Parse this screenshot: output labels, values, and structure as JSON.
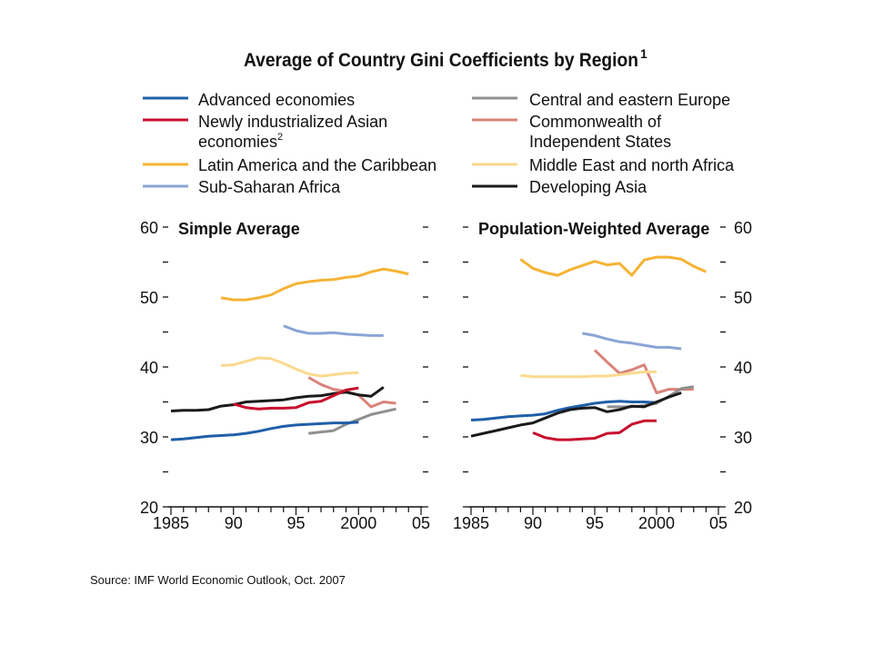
{
  "source": "Source: IMF World Economic Outlook, Oct. 2007",
  "chart_data": {
    "type": "line",
    "title": "Average of Country Gini Coefficients by Region",
    "title_superscript": "1",
    "ylim": [
      20,
      60
    ],
    "xlim": [
      1985,
      2005
    ],
    "y_ticks": [
      "20",
      "30",
      "40",
      "50",
      "60"
    ],
    "x_ticks": [
      "1985",
      "90",
      "95",
      "2000",
      "05"
    ],
    "legend": [
      {
        "key": "adv",
        "lines": [
          "Advanced economies"
        ],
        "color": "#1f5fa8"
      },
      {
        "key": "nie",
        "lines": [
          "Newly industrialized Asian",
          "economies"
        ],
        "sup": "2",
        "color": "#c8102e"
      },
      {
        "key": "lac",
        "lines": [
          "Latin America and the Caribbean"
        ],
        "color": "#f5b335"
      },
      {
        "key": "ssa",
        "lines": [
          "Sub-Saharan Africa"
        ],
        "color": "#8aa4d6"
      },
      {
        "key": "cee",
        "lines": [
          "Central and eastern Europe"
        ],
        "color": "#8f8f8f"
      },
      {
        "key": "cis",
        "lines": [
          "Commonwealth of",
          "Independent States"
        ],
        "color": "#d9837a"
      },
      {
        "key": "mena",
        "lines": [
          "Middle East and north Africa"
        ],
        "color": "#fbd98f"
      },
      {
        "key": "dasia",
        "lines": [
          "Developing Asia"
        ],
        "color": "#1a1a1a"
      }
    ],
    "panels": [
      {
        "title": "Simple Average",
        "series": [
          {
            "key": "lac",
            "x": [
              1989,
              1990,
              1991,
              1992,
              1993,
              1994,
              1995,
              1996,
              1997,
              1998,
              1999,
              2000,
              2001,
              2002,
              2003,
              2004
            ],
            "y": [
              49.9,
              49.6,
              49.6,
              49.9,
              50.3,
              51.2,
              51.9,
              52.2,
              52.4,
              52.5,
              52.8,
              53.0,
              53.6,
              54.0,
              53.7,
              53.3
            ]
          },
          {
            "key": "ssa",
            "x": [
              1994,
              1995,
              1996,
              1997,
              1998,
              1999,
              2000,
              2001,
              2002
            ],
            "y": [
              45.9,
              45.2,
              44.8,
              44.8,
              44.9,
              44.7,
              44.6,
              44.5,
              44.5
            ]
          },
          {
            "key": "mena",
            "x": [
              1989,
              1990,
              1991,
              1992,
              1993,
              1994,
              1995,
              1996,
              1997,
              1998,
              1999,
              2000
            ],
            "y": [
              40.2,
              40.3,
              40.8,
              41.3,
              41.2,
              40.5,
              39.7,
              39.0,
              38.7,
              38.9,
              39.1,
              39.2
            ]
          },
          {
            "key": "cis",
            "x": [
              1996,
              1997,
              1998,
              1999,
              2000,
              2001,
              2002,
              2003
            ],
            "y": [
              38.5,
              37.5,
              36.8,
              36.5,
              36.0,
              34.3,
              35.0,
              34.8
            ]
          },
          {
            "key": "dasia",
            "x": [
              1985,
              1986,
              1987,
              1988,
              1989,
              1990,
              1991,
              1992,
              1993,
              1994,
              1995,
              1996,
              1997,
              1998,
              1999,
              2000,
              2001,
              2002
            ],
            "y": [
              33.7,
              33.8,
              33.8,
              33.9,
              34.4,
              34.6,
              35.0,
              35.1,
              35.2,
              35.3,
              35.6,
              35.8,
              35.9,
              36.2,
              36.4,
              36.0,
              35.8,
              37.1
            ]
          },
          {
            "key": "nie",
            "x": [
              1990,
              1991,
              1992,
              1993,
              1994,
              1995,
              1996,
              1997,
              1998,
              1999,
              2000
            ],
            "y": [
              34.7,
              34.2,
              34.0,
              34.1,
              34.1,
              34.2,
              34.9,
              35.1,
              35.9,
              36.7,
              37.0
            ]
          },
          {
            "key": "cee",
            "x": [
              1996,
              1997,
              1998,
              1999,
              2000,
              2001,
              2002,
              2003
            ],
            "y": [
              30.5,
              30.7,
              30.9,
              31.8,
              32.5,
              33.2,
              33.6,
              34.0
            ]
          },
          {
            "key": "adv",
            "x": [
              1985,
              1986,
              1987,
              1988,
              1989,
              1990,
              1991,
              1992,
              1993,
              1994,
              1995,
              1996,
              1997,
              1998,
              1999,
              2000
            ],
            "y": [
              29.6,
              29.7,
              29.9,
              30.1,
              30.2,
              30.3,
              30.5,
              30.8,
              31.2,
              31.5,
              31.7,
              31.8,
              31.9,
              32.0,
              32.0,
              32.1
            ]
          }
        ]
      },
      {
        "title": "Population-Weighted Average",
        "series": [
          {
            "key": "lac",
            "x": [
              1989,
              1990,
              1991,
              1992,
              1993,
              1994,
              1995,
              1996,
              1997,
              1998,
              1999,
              2000,
              2001,
              2002,
              2003,
              2004
            ],
            "y": [
              55.4,
              54.1,
              53.5,
              53.1,
              53.9,
              54.5,
              55.1,
              54.6,
              54.8,
              53.1,
              55.3,
              55.7,
              55.7,
              55.4,
              54.4,
              53.6
            ]
          },
          {
            "key": "ssa",
            "x": [
              1994,
              1995,
              1996,
              1997,
              1998,
              1999,
              2000,
              2001,
              2002
            ],
            "y": [
              44.8,
              44.5,
              44.0,
              43.6,
              43.4,
              43.1,
              42.8,
              42.8,
              42.6
            ]
          },
          {
            "key": "cis",
            "x": [
              1995,
              1996,
              1997,
              1998,
              1999,
              2000,
              2001,
              2002,
              2003
            ],
            "y": [
              42.4,
              40.7,
              39.1,
              39.6,
              40.3,
              36.3,
              36.8,
              36.8,
              36.8
            ]
          },
          {
            "key": "mena",
            "x": [
              1989,
              1990,
              1991,
              1992,
              1993,
              1994,
              1995,
              1996,
              1997,
              1998,
              1999,
              2000
            ],
            "y": [
              38.8,
              38.6,
              38.6,
              38.6,
              38.6,
              38.6,
              38.7,
              38.7,
              38.9,
              39.1,
              39.3,
              39.3
            ]
          },
          {
            "key": "cee",
            "x": [
              1996,
              1997,
              1998,
              1999,
              2000,
              2001,
              2002,
              2003
            ],
            "y": [
              34.3,
              34.3,
              34.3,
              34.5,
              34.8,
              35.8,
              36.9,
              37.2
            ]
          },
          {
            "key": "adv",
            "x": [
              1985,
              1986,
              1987,
              1988,
              1989,
              1990,
              1991,
              1992,
              1993,
              1994,
              1995,
              1996,
              1997,
              1998,
              1999,
              2000
            ],
            "y": [
              32.4,
              32.5,
              32.7,
              32.9,
              33.0,
              33.1,
              33.3,
              33.8,
              34.2,
              34.5,
              34.8,
              35.0,
              35.1,
              35.0,
              35.0,
              34.9
            ]
          },
          {
            "key": "dasia",
            "x": [
              1985,
              1986,
              1987,
              1988,
              1989,
              1990,
              1991,
              1992,
              1993,
              1994,
              1995,
              1996,
              1997,
              1998,
              1999,
              2000,
              2001,
              2002
            ],
            "y": [
              30.1,
              30.5,
              30.9,
              31.3,
              31.7,
              32.0,
              32.7,
              33.4,
              33.9,
              34.1,
              34.2,
              33.6,
              33.9,
              34.4,
              34.3,
              35.0,
              35.7,
              36.3
            ]
          },
          {
            "key": "nie",
            "x": [
              1990,
              1991,
              1992,
              1993,
              1994,
              1995,
              1996,
              1997,
              1998,
              1999,
              2000
            ],
            "y": [
              30.6,
              29.9,
              29.6,
              29.6,
              29.7,
              29.8,
              30.5,
              30.6,
              31.8,
              32.3,
              32.3
            ]
          }
        ]
      }
    ]
  }
}
